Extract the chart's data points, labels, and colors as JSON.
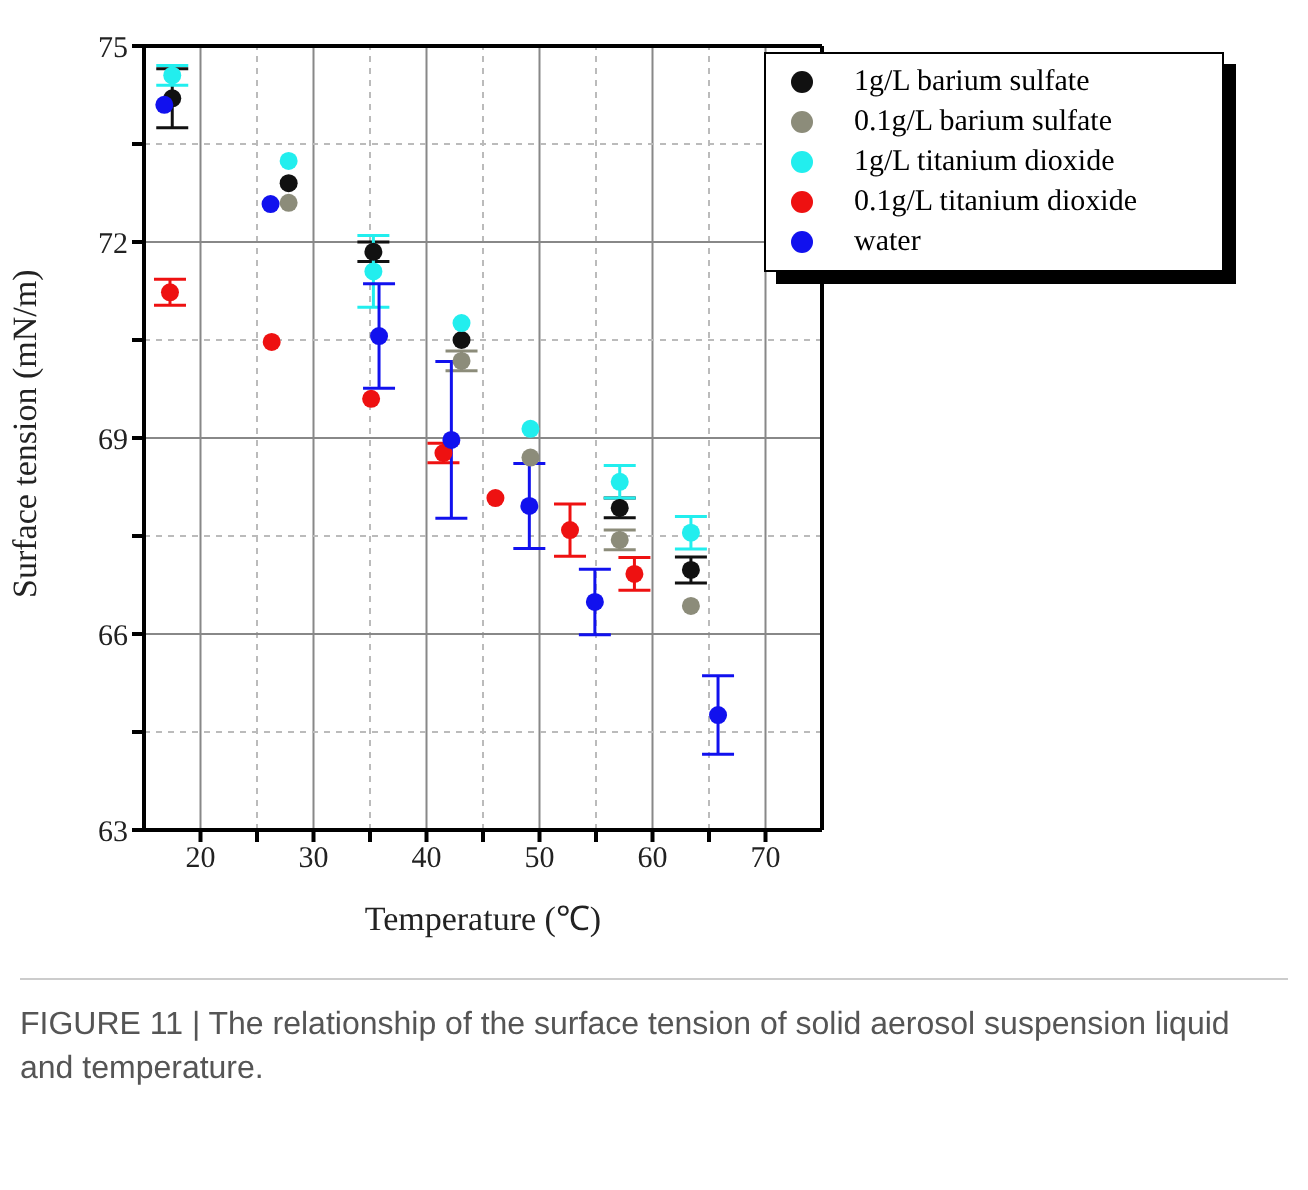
{
  "chart_data": {
    "type": "scatter",
    "xlabel": "Temperature (℃)",
    "ylabel": "Surface tension (mN/m)",
    "xlim": [
      15,
      75
    ],
    "xticks": [
      20,
      {
        "value": 25,
        "label": null
      },
      30,
      {
        "value": 35,
        "label": null
      },
      40,
      {
        "value": 45,
        "label": null
      },
      50,
      {
        "value": 55,
        "label": null
      },
      60,
      {
        "value": 65,
        "label": null
      },
      70
    ],
    "ylim": [
      63,
      75
    ],
    "yticks": [
      63,
      {
        "value": 64.5,
        "label": null
      },
      66,
      {
        "value": 67.5,
        "label": null
      },
      69,
      {
        "value": 70.5,
        "label": null
      },
      72,
      {
        "value": 73.5,
        "label": null
      },
      75
    ],
    "grid": true,
    "legend": "top right",
    "marker": "circle",
    "series": [
      {
        "name": "1g/L barium sulfate",
        "color": "#111111",
        "x": [
          17.5,
          27.8,
          35.3,
          43.1,
          49.2,
          57.1,
          63.4
        ],
        "values": [
          74.2,
          72.9,
          71.85,
          70.5,
          null,
          67.93,
          66.98
        ],
        "errors": [
          0.45,
          null,
          0.15,
          null,
          null,
          0.15,
          0.2
        ]
      },
      {
        "name": "0.1g/L barium sulfate",
        "color": "#8c8c7a",
        "x": [
          null,
          27.8,
          35.3,
          43.1,
          49.2,
          57.1,
          63.4
        ],
        "values": [
          null,
          72.6,
          null,
          70.18,
          68.7,
          67.44,
          66.43
        ],
        "errors": [
          null,
          null,
          null,
          0.15,
          null,
          0.15,
          null
        ]
      },
      {
        "name": "1g/L titanium dioxide",
        "color": "#22eeee",
        "x": [
          17.5,
          27.8,
          35.3,
          43.1,
          49.2,
          57.1,
          63.4
        ],
        "values": [
          74.55,
          73.24,
          71.55,
          70.76,
          69.14,
          68.33,
          67.55
        ],
        "errors": [
          0.15,
          null,
          0.55,
          null,
          null,
          0.25,
          0.25
        ]
      },
      {
        "name": "0.1g/L titanium dioxide",
        "color": "#ee1111",
        "x": [
          17.3,
          26.3,
          35.1,
          41.5,
          46.1,
          52.7,
          58.4
        ],
        "values": [
          71.23,
          70.47,
          69.6,
          68.77,
          68.08,
          67.59,
          66.92
        ],
        "errors": [
          0.2,
          null,
          null,
          0.15,
          null,
          0.4,
          0.25
        ]
      },
      {
        "name": "water",
        "color": "#1111ee",
        "x": [
          16.8,
          26.2,
          35.8,
          42.2,
          49.1,
          54.9,
          65.8
        ],
        "values": [
          74.1,
          72.58,
          70.56,
          68.97,
          67.96,
          66.49,
          64.76
        ],
        "errors": [
          null,
          null,
          0.8,
          1.2,
          0.65,
          0.5,
          0.6
        ]
      }
    ],
    "annotations": [
      "FIGURE 11 | The relationship of the surface tension of solid aerosol suspension liquid and temperature."
    ]
  }
}
